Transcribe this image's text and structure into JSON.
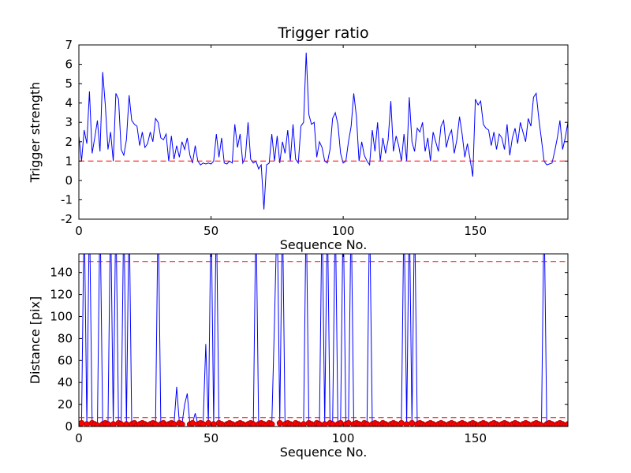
{
  "figure": {
    "background": "#ffffff",
    "line_color": "#0000ff",
    "threshold_color": "#ff0000",
    "marker_color": "#ff0000"
  },
  "chart_data": [
    {
      "type": "line",
      "title": "Trigger ratio",
      "xlabel": "Sequence No.",
      "ylabel": "Trigger strength",
      "xlim": [
        0,
        185
      ],
      "ylim": [
        -2,
        7
      ],
      "xticks": [
        0,
        50,
        100,
        150
      ],
      "yticks": [
        -2,
        -1,
        0,
        1,
        2,
        3,
        4,
        5,
        6,
        7
      ],
      "grid": false,
      "legend": "none",
      "line_color": "#0000ff",
      "thresholds": [
        {
          "y": 1,
          "color": "#ff0000",
          "style": "dashed"
        }
      ],
      "values": [
        2.3,
        1.0,
        2.6,
        1.9,
        4.6,
        1.4,
        2.2,
        3.1,
        1.5,
        5.6,
        3.9,
        1.6,
        2.5,
        1.0,
        4.5,
        4.2,
        1.6,
        1.3,
        2.1,
        4.4,
        3.1,
        2.9,
        2.8,
        1.8,
        2.5,
        1.7,
        1.9,
        2.5,
        2.0,
        3.2,
        3.0,
        2.2,
        2.1,
        2.4,
        1.0,
        2.3,
        1.1,
        1.8,
        1.2,
        2.0,
        1.6,
        2.2,
        1.3,
        0.9,
        1.8,
        1.0,
        0.8,
        0.9,
        0.85,
        0.9,
        0.85,
        1.0,
        2.4,
        1.2,
        2.2,
        0.9,
        0.85,
        1.0,
        0.9,
        2.9,
        1.7,
        2.4,
        0.9,
        1.2,
        3.0,
        1.1,
        0.9,
        1.0,
        0.6,
        0.8,
        -1.5,
        0.8,
        0.9,
        2.4,
        1.0,
        2.3,
        0.9,
        2.0,
        1.4,
        2.6,
        1.0,
        2.9,
        1.1,
        0.9,
        2.8,
        3.0,
        6.6,
        3.4,
        2.9,
        3.0,
        1.2,
        2.0,
        1.7,
        1.0,
        0.9,
        1.6,
        3.2,
        3.5,
        2.9,
        1.4,
        0.9,
        1.0,
        2.0,
        2.8,
        4.5,
        3.3,
        1.0,
        2.0,
        1.3,
        1.0,
        0.8,
        2.6,
        1.5,
        3.0,
        1.0,
        2.2,
        1.4,
        2.1,
        4.1,
        1.5,
        2.3,
        1.8,
        1.0,
        2.4,
        1.0,
        4.3,
        2.0,
        1.5,
        2.7,
        2.5,
        3.0,
        1.5,
        2.2,
        1.0,
        2.5,
        2.0,
        1.5,
        2.8,
        3.1,
        1.7,
        2.3,
        2.6,
        1.4,
        2.1,
        3.3,
        2.4,
        1.2,
        1.9,
        1.1,
        0.2,
        4.2,
        3.9,
        4.1,
        2.9,
        2.7,
        2.6,
        1.8,
        2.5,
        1.6,
        2.4,
        2.2,
        1.6,
        2.9,
        1.3,
        2.2,
        2.7,
        1.9,
        3.0,
        2.5,
        2.0,
        3.2,
        2.8,
        4.3,
        4.5,
        3.2,
        2.1,
        1.0,
        0.8,
        0.85,
        0.9,
        1.5,
        2.2,
        3.1,
        1.6,
        2.2,
        3.0
      ]
    },
    {
      "type": "line",
      "title": "",
      "xlabel": "Sequence No.",
      "ylabel": "Distance [pix]",
      "xlim": [
        0,
        185
      ],
      "ylim": [
        0,
        157
      ],
      "xticks": [
        0,
        50,
        100,
        150
      ],
      "yticks": [
        0,
        20,
        40,
        60,
        80,
        100,
        120,
        140
      ],
      "grid": false,
      "legend": "none",
      "line_color": "#0000ff",
      "thresholds": [
        {
          "y": 150,
          "color": "#ff0000",
          "style": "dashed"
        },
        {
          "y": 8,
          "color": "#ff0000",
          "style": "dashed"
        }
      ],
      "marker": {
        "shape": "circle",
        "color": "#ff0000",
        "edge_color": "#aa0000",
        "threshold": 8
      },
      "values": [
        2,
        3,
        200,
        2,
        200,
        3,
        2,
        1,
        200,
        2,
        3,
        2,
        200,
        2,
        200,
        3,
        2,
        200,
        2,
        200,
        2,
        3,
        1,
        2,
        3,
        2,
        1,
        2,
        3,
        2,
        200,
        2,
        3,
        1,
        2,
        3,
        2,
        36,
        3,
        2,
        20,
        30,
        2,
        3,
        12,
        2,
        3,
        2,
        75,
        3,
        200,
        2,
        200,
        3,
        2,
        1,
        2,
        3,
        2,
        1,
        2,
        3,
        2,
        1,
        2,
        3,
        2,
        200,
        2,
        3,
        2,
        1,
        3,
        2,
        95,
        200,
        3,
        200,
        2,
        3,
        2,
        1,
        3,
        2,
        1,
        2,
        200,
        3,
        2,
        1,
        3,
        2,
        200,
        2,
        200,
        3,
        2,
        200,
        2,
        3,
        200,
        2,
        3,
        200,
        2,
        3,
        2,
        1,
        3,
        2,
        200,
        2,
        3,
        2,
        1,
        3,
        2,
        1,
        2,
        3,
        2,
        1,
        3,
        200,
        2,
        200,
        3,
        200,
        2,
        3,
        2,
        1,
        2,
        3,
        2,
        1,
        2,
        3,
        2,
        1,
        2,
        3,
        2,
        1,
        2,
        3,
        2,
        1,
        2,
        3,
        2,
        1,
        2,
        3,
        2,
        1,
        2,
        3,
        2,
        1,
        2,
        3,
        2,
        1,
        2,
        3,
        2,
        1,
        2,
        3,
        2,
        1,
        2,
        3,
        2,
        1,
        200,
        2,
        3,
        2,
        1,
        2,
        3,
        2,
        1,
        2
      ]
    }
  ]
}
